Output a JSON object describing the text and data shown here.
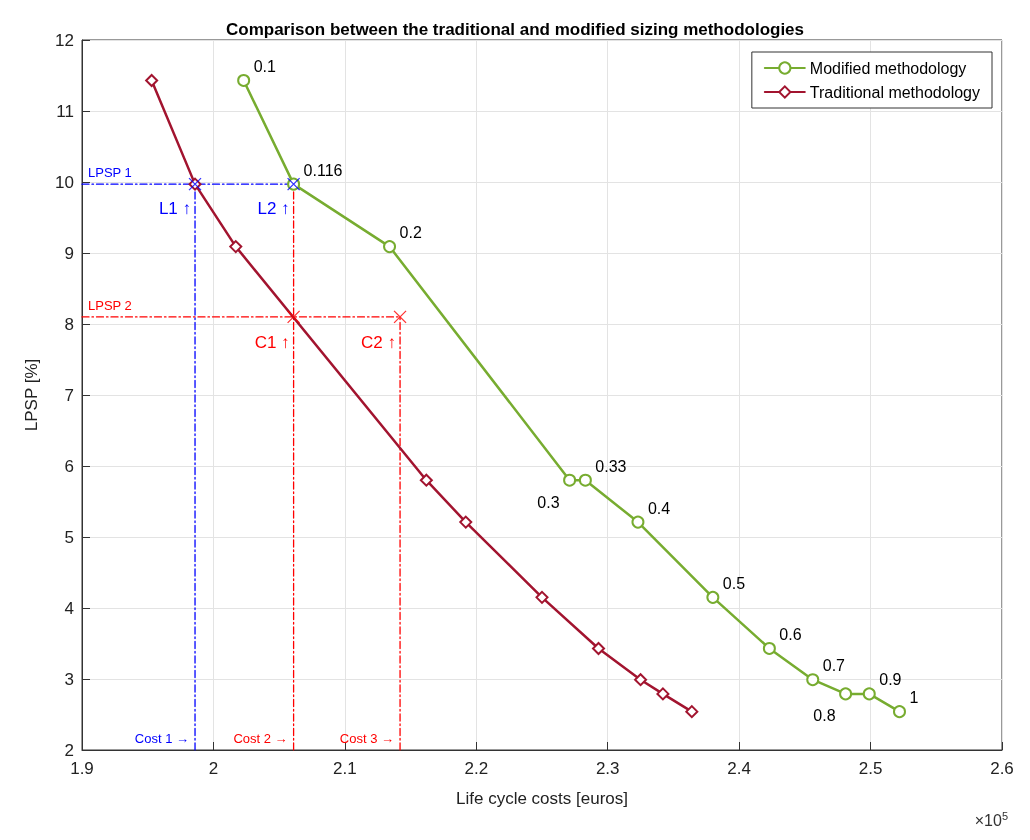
{
  "chart_data": {
    "type": "line",
    "title": "Comparison between the traditional and modified sizing methodologies",
    "xlabel": "Life cycle costs [euros]",
    "ylabel": "LPSP [%]",
    "annotations": [
      "×10$^{5}$",
      {
        "text": "0.1",
        "x": 2.023,
        "y": 11.43
      },
      {
        "text": "0.116",
        "x": 2.061,
        "y": 9.97
      },
      {
        "text": "0.2",
        "x": 2.134,
        "y": 9.09
      },
      {
        "text": "0.3",
        "x": 2.271,
        "y": 5.8
      },
      {
        "text": "0.33",
        "x": 2.283,
        "y": 5.8
      },
      {
        "text": "0.4",
        "x": 2.323,
        "y": 5.21
      },
      {
        "text": "0.5",
        "x": 2.38,
        "y": 4.15
      },
      {
        "text": "0.6",
        "x": 2.423,
        "y": 3.43
      },
      {
        "text": "0.7",
        "x": 2.456,
        "y": 2.99
      },
      {
        "text": "0.8",
        "x": 2.481,
        "y": 2.79
      },
      {
        "text": "0.9",
        "x": 2.499,
        "y": 2.79
      },
      {
        "text": "1",
        "x": 2.522,
        "y": 2.54
      },
      {
        "text": "LPSP 1",
        "x": 1.9,
        "y": 9.97
      },
      {
        "text": "LPSP 2",
        "x": 1.9,
        "y": 8.1
      },
      {
        "text": "Cost 1 →",
        "x": 1.986,
        "y": 2
      },
      {
        "text": "Cost 2 →",
        "x": 2.061,
        "y": 2
      },
      {
        "text": "Cost 3 →",
        "x": 2.142,
        "y": 2
      },
      {
        "text": "L1 ↑",
        "x": 1.986,
        "y": 9.6
      },
      {
        "text": "L2 ↑",
        "x": 2.061,
        "y": 9.6
      },
      {
        "text": "C1 ↑",
        "x": 2.061,
        "y": 7.72
      },
      {
        "text": "C2 ↑",
        "x": 2.142,
        "y": 7.72
      }
    ],
    "xlim": [
      1.9,
      2.6
    ],
    "xticks": [
      1.9,
      2,
      2.1,
      2.2,
      2.3,
      2.4,
      2.5,
      2.6
    ],
    "ylim": [
      2,
      12
    ],
    "yticks": [
      2,
      3,
      4,
      5,
      6,
      7,
      8,
      9,
      10,
      11,
      12
    ],
    "grid": true,
    "legend": "top right",
    "series": [
      {
        "name": "Modified methodology",
        "color": "#77ac30",
        "marker": "circle",
        "line_style": "solid",
        "x": [
          2.023,
          2.061,
          2.134,
          2.271,
          2.283,
          2.323,
          2.38,
          2.423,
          2.456,
          2.481,
          2.499,
          2.522
        ],
        "values": [
          11.43,
          9.97,
          9.09,
          5.8,
          5.8,
          5.21,
          4.15,
          3.43,
          2.99,
          2.79,
          2.79,
          2.54
        ]
      },
      {
        "name": "Traditional methodology",
        "color": "#a2142f",
        "marker": "diamond",
        "line_style": "solid",
        "x": [
          1.953,
          1.986,
          2.017,
          2.162,
          2.192,
          2.25,
          2.293,
          2.325,
          2.342,
          2.364
        ],
        "values": [
          11.43,
          9.97,
          9.09,
          5.8,
          5.21,
          4.15,
          3.43,
          2.99,
          2.79,
          2.54
        ]
      },
      {
        "color": "#0000ff",
        "marker": "none",
        "line_style": "dashed",
        "x": [
          1.9,
          2.061
        ],
        "values": [
          9.97,
          9.97
        ]
      },
      {
        "color": "#0000ff",
        "marker": "none",
        "line_style": "dashed",
        "x": [
          1.986,
          1.986
        ],
        "values": [
          2,
          9.97
        ]
      },
      {
        "color": "#ff0000",
        "marker": "none",
        "line_style": "dashed",
        "x": [
          1.9,
          2.142
        ],
        "values": [
          8.1,
          8.1
        ]
      },
      {
        "color": "#ff0000",
        "marker": "none",
        "line_style": "dashed",
        "x": [
          2.061,
          2.061
        ],
        "values": [
          2,
          9.97
        ]
      },
      {
        "color": "#ff0000",
        "marker": "none",
        "line_style": "dashed",
        "x": [
          2.142,
          2.142
        ],
        "values": [
          2,
          8.1
        ]
      },
      {
        "type": "scatter",
        "color": "#0000ff",
        "marker": "cross",
        "x": [
          1.986,
          2.061
        ],
        "values": [
          9.97,
          9.97
        ]
      },
      {
        "type": "scatter",
        "color": "#ff0000",
        "marker": "cross",
        "x": [
          2.061,
          2.142
        ],
        "values": [
          8.1,
          8.1
        ]
      }
    ]
  }
}
